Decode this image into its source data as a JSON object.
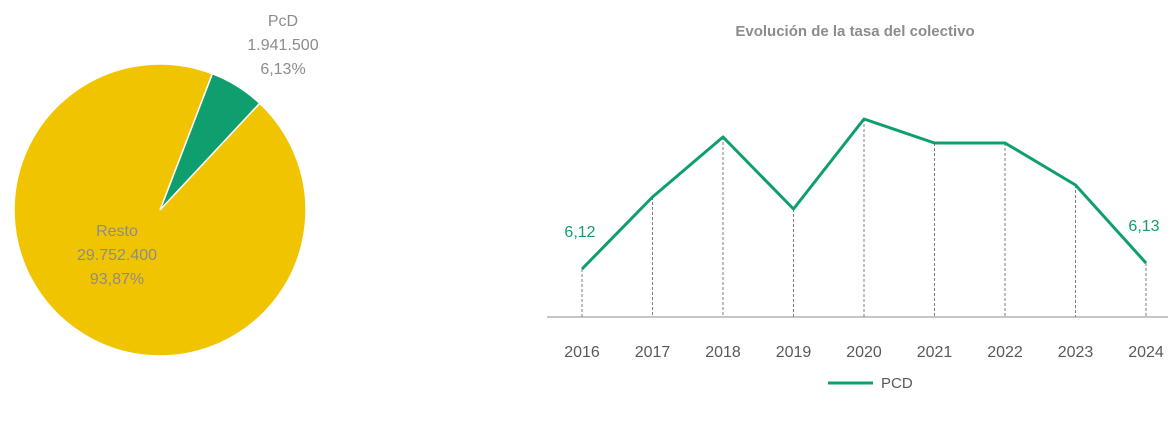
{
  "chart_data": [
    {
      "type": "pie",
      "categories": [
        "PcD",
        "Resto"
      ],
      "values": [
        1941500,
        29752400
      ],
      "value_labels": [
        "1.941.500",
        "29.752.400"
      ],
      "percentages": [
        6.13,
        93.87
      ],
      "percentage_labels": [
        "6,13%",
        "93,87%"
      ],
      "colors": [
        "#0f9f6e",
        "#f0c400"
      ]
    },
    {
      "type": "line",
      "title": "Evolución de la tasa del colectivo",
      "categories": [
        "2016",
        "2017",
        "2018",
        "2019",
        "2020",
        "2021",
        "2022",
        "2023",
        "2024"
      ],
      "series": [
        {
          "name": "PCD",
          "color": "#0f9f6e",
          "values": [
            6.12,
            6.24,
            6.34,
            6.22,
            6.37,
            6.33,
            6.33,
            6.26,
            6.13
          ],
          "value_labels": [
            "6,12",
            null,
            null,
            null,
            null,
            null,
            null,
            null,
            "6,13"
          ]
        }
      ],
      "ylim": [
        6.04,
        6.4
      ],
      "legend": "bottom"
    }
  ]
}
